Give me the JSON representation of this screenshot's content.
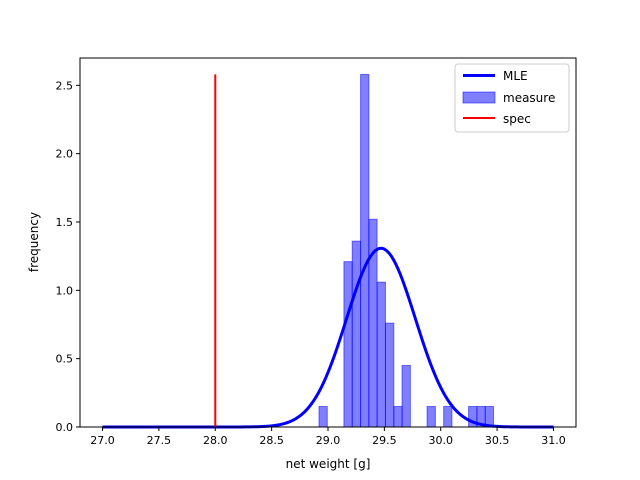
{
  "chart_data": {
    "type": "bar",
    "title": "",
    "xlabel": "net weight [g]",
    "ylabel": "frequency",
    "xlim": [
      26.8,
      31.2
    ],
    "ylim": [
      0,
      2.7
    ],
    "xticks": [
      27.0,
      27.5,
      28.0,
      28.5,
      29.0,
      29.5,
      30.0,
      30.5,
      31.0
    ],
    "xtick_labels": [
      "27.0",
      "27.5",
      "28.0",
      "28.5",
      "29.0",
      "29.5",
      "30.0",
      "30.5",
      "31.0"
    ],
    "yticks": [
      0.0,
      0.5,
      1.0,
      1.5,
      2.0,
      2.5
    ],
    "ytick_labels": [
      "0.0",
      "0.5",
      "1.0",
      "1.5",
      "2.0",
      "2.5"
    ],
    "grid": false,
    "legend_position": "top-right",
    "series": [
      {
        "name": "MLE",
        "kind": "line",
        "color": "#0000ff",
        "mean": 29.47,
        "std": 0.305,
        "x_range": [
          27.0,
          31.0
        ]
      },
      {
        "name": "measure",
        "kind": "histogram",
        "color": "#0000ff",
        "bin_width": 0.0737,
        "bins": [
          {
            "left": 28.92,
            "height": 0.15
          },
          {
            "left": 29.141,
            "height": 1.21
          },
          {
            "left": 29.215,
            "height": 1.36
          },
          {
            "left": 29.289,
            "height": 2.58
          },
          {
            "left": 29.362,
            "height": 1.52
          },
          {
            "left": 29.436,
            "height": 1.06
          },
          {
            "left": 29.51,
            "height": 0.76
          },
          {
            "left": 29.584,
            "height": 0.15
          },
          {
            "left": 29.657,
            "height": 0.45
          },
          {
            "left": 29.879,
            "height": 0.15
          },
          {
            "left": 30.026,
            "height": 0.15
          },
          {
            "left": 30.247,
            "height": 0.15
          },
          {
            "left": 30.321,
            "height": 0.15
          },
          {
            "left": 30.395,
            "height": 0.15
          }
        ]
      },
      {
        "name": "spec",
        "kind": "vline",
        "color": "#ff0000",
        "x": 28.0,
        "y_range": [
          0,
          2.58
        ]
      }
    ]
  }
}
